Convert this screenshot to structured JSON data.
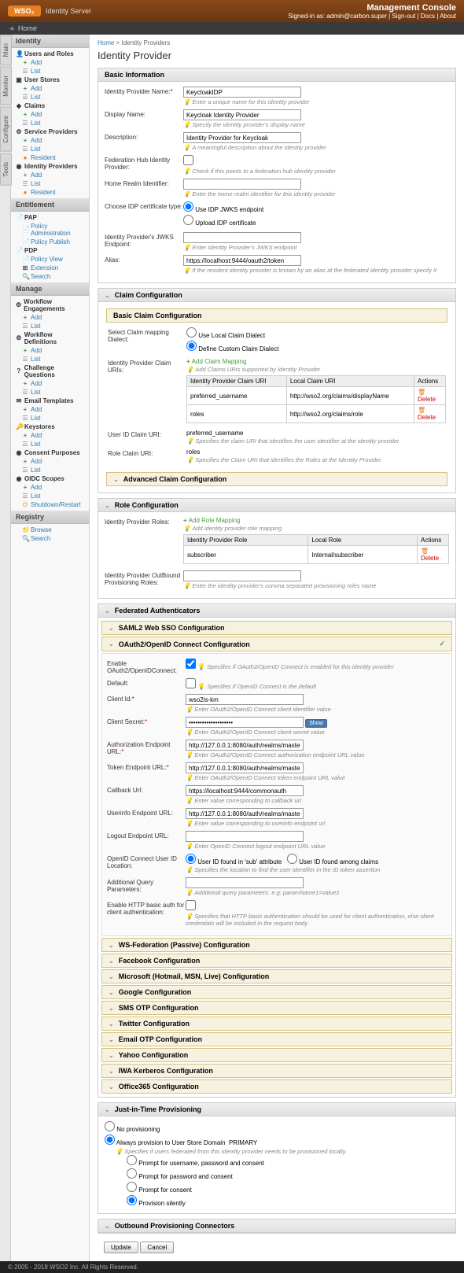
{
  "header": {
    "logo_brand": "WSO₂",
    "logo_product": "Identity Server",
    "console_title": "Management Console",
    "signed_in_prefix": "Signed-in as:",
    "signed_in_user": "admin@carbon.super",
    "link_signout": "Sign-out",
    "link_docs": "Docs",
    "link_about": "About"
  },
  "home_bar": "Home",
  "side_tabs": [
    "Main",
    "Monitor",
    "Configure",
    "Tools"
  ],
  "sidebar": {
    "identity": {
      "title": "Identity",
      "users_roles": "Users and Roles",
      "user_stores": "User Stores",
      "claims": "Claims",
      "service_providers": "Service Providers",
      "identity_providers": "Identity Providers",
      "add": "Add",
      "list": "List",
      "resident": "Resident"
    },
    "entitlement": {
      "title": "Entitlement",
      "pap": "PAP",
      "policy_admin": "Policy Administration",
      "policy_publish": "Policy Publish",
      "pdp": "PDP",
      "policy_view": "Policy View",
      "extension": "Extension",
      "search": "Search"
    },
    "manage": {
      "title": "Manage",
      "workflow_eng": "Workflow Engagements",
      "workflow_def": "Workflow Definitions",
      "challenge_q": "Challenge Questions",
      "email_tmpl": "Email Templates",
      "keystores": "Keystores",
      "consent": "Consent Purposes",
      "oidc_scopes": "OIDC Scopes",
      "shutdown": "Shutdown/Restart"
    },
    "registry": {
      "title": "Registry",
      "browse": "Browse",
      "search": "Search"
    }
  },
  "breadcrumb": {
    "home": "Home",
    "current": "Identity Providers"
  },
  "page_title": "Identity Provider",
  "basic_info": {
    "title": "Basic Information",
    "idp_name_label": "Identity Provider Name:",
    "idp_name_value": "KeycloakIDP",
    "idp_name_hint": "Enter a unique name for this identity provider",
    "display_name_label": "Display Name:",
    "display_name_value": "Keycloak Identity Provider",
    "display_name_hint": "Specify the identity provider's display name",
    "description_label": "Description:",
    "description_value": "Identity Provider for Keycloak",
    "description_hint": "A meaningful description about the identity provider",
    "fed_hub_label": "Federation Hub Identity Provider:",
    "fed_hub_hint": "Check if this points to a federation hub identity provider",
    "home_realm_label": "Home Realm Identifier:",
    "home_realm_hint": "Enter the home realm identifier for this identity provider",
    "cert_type_label": "Choose IDP certificate type:",
    "cert_jwks": "Use IDP JWKS endpoint",
    "cert_upload": "Upload IDP certificate",
    "jwks_label": "Identity Provider's JWKS Endpoint:",
    "jwks_hint": "Enter Identity Provider's JWKS endpoint",
    "alias_label": "Alias:",
    "alias_value": "https://localhost:9444/oauth2/token",
    "alias_hint": "If the resident identity provider is known by an alias at the federated identity provider specify it"
  },
  "claim_config": {
    "title": "Claim Configuration",
    "basic_title": "Basic Claim Configuration",
    "dialect_label": "Select Claim mapping Dialect:",
    "use_local": "Use Local Claim Dialect",
    "define_custom": "Define Custom Claim Dialect",
    "uris_label": "Identity Provider Claim URIs:",
    "add_mapping": "Add Claim Mapping",
    "uris_hint": "Add Claims URIs supported by Identity Provider",
    "col_idp_claim": "Identity Provider Claim URI",
    "col_local_claim": "Local Claim URI",
    "col_actions": "Actions",
    "rows": [
      {
        "idp": "preferred_username",
        "local": "http://wso2.org/claims/displayName"
      },
      {
        "idp": "roles",
        "local": "http://wso2.org/claims/role"
      }
    ],
    "delete": "Delete",
    "userid_label": "User ID Claim URI:",
    "userid_value": "preferred_username",
    "userid_hint": "Specifies the claim URI that identifies the user identifier at the identity provider",
    "role_label": "Role Claim URI:",
    "role_value": "roles",
    "role_hint": "Specifies the Claim URI that identifies the Roles at the Identity Provider",
    "advanced_title": "Advanced Claim Configuration"
  },
  "role_config": {
    "title": "Role Configuration",
    "roles_label": "Identity Provider Roles:",
    "add_mapping": "Add Role Mapping",
    "add_hint": "Add identity provider role mapping",
    "col_idp_role": "Identity Provider Role",
    "col_local_role": "Local Role",
    "col_actions": "Actions",
    "row_idp": "subscriber",
    "row_local": "Internal/subscriber",
    "delete": "Delete",
    "prov_label": "Identity Provider OutBound Provisioning Roles:",
    "prov_hint": "Enter the identity provider's comma separated provisioning roles name"
  },
  "fed_auth": {
    "title": "Federated Authenticators",
    "saml": "SAML2 Web SSO Configuration",
    "oauth_title": "OAuth2/OpenID Connect Configuration",
    "enable_label": "Enable OAuth2/OpenIDConnect:",
    "enable_hint": "Specifies if OAuth2/OpenID Connect is enabled for this identity provider",
    "default_label": "Default:",
    "default_hint": "Specifies if OpenID Connect is the default",
    "client_id_label": "Client Id:",
    "client_id_value": "wso2is-km",
    "client_id_hint": "Enter OAuth2/OpenID Connect client identifier value",
    "client_secret_label": "Client Secret:",
    "show_btn": "Show",
    "client_secret_hint": "Enter OAuth2/OpenID Connect client secret value",
    "authz_label": "Authorization Endpoint URL:",
    "authz_value": "http://127.0.0.1:8080/auth/realms/master/proto",
    "authz_hint": "Enter OAuth2/OpenID Connect authorization endpoint URL value",
    "token_label": "Token Endpoint URL:",
    "token_value": "http://127.0.0.1:8080/auth/realms/master/proto",
    "token_hint": "Enter OAuth2/OpenID Connect token endpoint URL value",
    "callback_label": "Callback Url:",
    "callback_value": "https://localhost:9444/commonauth",
    "callback_hint": "Enter value corresponding to callback url",
    "userinfo_label": "Userinfo Endpoint URL:",
    "userinfo_value": "http://127.0.0.1:8080/auth/realms/master/proto",
    "userinfo_hint": "Enter value corresponding to userinfo endpoint url",
    "logout_label": "Logout Endpoint URL:",
    "logout_hint": "Enter OpenID Connect logout endpoint URL value",
    "userid_loc_label": "OpenID Connect User ID Location:",
    "userid_sub": "User ID found in 'sub' attribute",
    "userid_claims": "User ID found among claims",
    "userid_loc_hint": "Specifies the location to find the user identifier in the ID token assertion",
    "query_label": "Additional Query Parameters:",
    "query_hint": "Additional query parameters. e.g: paramName1=value1",
    "basic_auth_label": "Enable HTTP basic auth for client authentication:",
    "basic_auth_hint": "Specifies that HTTP basic authentication should be used for client authentication, else client credentials will be included in the request body",
    "others": [
      "WS-Federation (Passive) Configuration",
      "Facebook Configuration",
      "Microsoft (Hotmail, MSN, Live) Configuration",
      "Google Configuration",
      "SMS OTP Configuration",
      "Twitter Configuration",
      "Email OTP Configuration",
      "Yahoo Configuration",
      "IWA Kerberos Configuration",
      "Office365 Configuration"
    ]
  },
  "jit": {
    "title": "Just-in-Time Provisioning",
    "no_prov": "No provisioning",
    "always": "Always provision to User Store Domain",
    "domain": "PRIMARY",
    "hint": "Specifies if users federated from this identity provider needs to be provisioned locally.",
    "prompt_upc": "Prompt for username, password and consent",
    "prompt_pc": "Prompt for password and consent",
    "prompt_c": "Prompt for consent",
    "prov_silently": "Provision silently"
  },
  "outbound": {
    "title": "Outbound Provisioning Connectors"
  },
  "buttons": {
    "update": "Update",
    "cancel": "Cancel"
  },
  "footer": "© 2005 - 2018 WSO2 Inc. All Rights Reserved."
}
